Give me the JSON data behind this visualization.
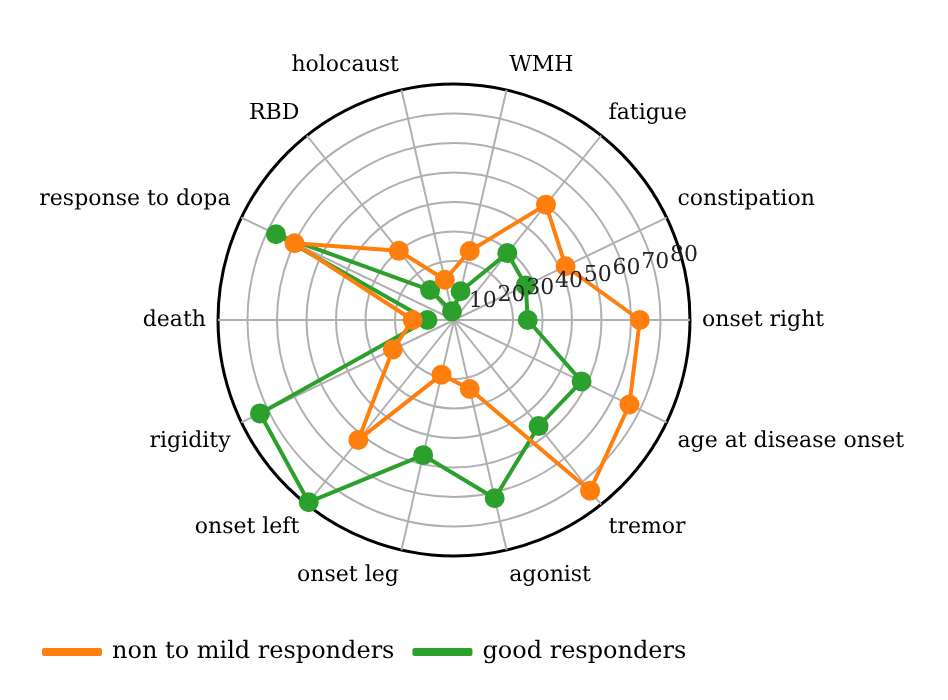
{
  "chart_data": {
    "type": "radar",
    "categories": [
      "WMH",
      "fatigue",
      "constipation",
      "onset right",
      "age at disease onset",
      "tremor",
      "agonist",
      "onset leg",
      "onset left",
      "rigidity",
      "death",
      "response to dopa",
      "RBD",
      "holocaust"
    ],
    "series": [
      {
        "name": "non to mild responders",
        "color": "#ff7f0e",
        "values": [
          24,
          50,
          42,
          63,
          66,
          74,
          24,
          19,
          52,
          23,
          14,
          60,
          30,
          14
        ]
      },
      {
        "name": "good responders",
        "color": "#2ca02c",
        "values": [
          10,
          29,
          27,
          25,
          48,
          46,
          62,
          47,
          79,
          73,
          9,
          67,
          13,
          3
        ]
      }
    ],
    "ylim": [
      0,
      80
    ],
    "yticks": [
      10,
      20,
      30,
      40,
      50,
      60,
      70,
      80
    ],
    "grid": true,
    "legend": "bottom left",
    "marker": "circle",
    "line_style": "solid"
  }
}
